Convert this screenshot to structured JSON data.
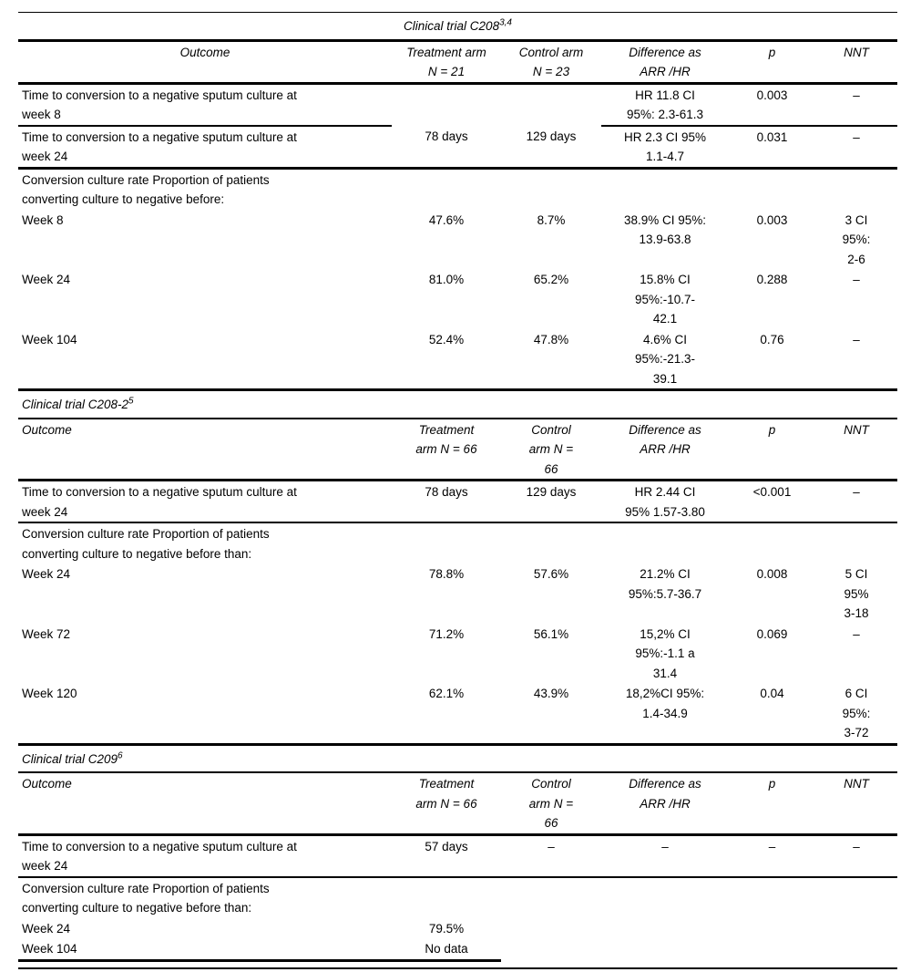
{
  "table": {
    "sections": [
      {
        "title": {
          "text": "Clinical trial C208",
          "sup": "3,4"
        },
        "header": {
          "outcome": "Outcome",
          "treatment": [
            "Treatment arm",
            "N = 21"
          ],
          "control": [
            "Control arm",
            "N = 23"
          ],
          "difference": [
            "Difference as",
            "ARR /HR"
          ],
          "p": "p",
          "nnt": "NNT"
        },
        "rows": [
          {
            "outcome": [
              "Time to conversion to a negative sputum culture at",
              "week 8"
            ],
            "treatment": [],
            "control": [],
            "difference": [
              "HR 11.8 CI",
              "95%: 2.3-61.3"
            ],
            "p": [
              "0.003"
            ],
            "nnt": [
              "–"
            ]
          },
          {
            "outcome": [
              "Time to conversion to a negative sputum culture at",
              "week 24"
            ],
            "treatment": [
              "78 days"
            ],
            "control": [
              "129 days"
            ],
            "difference": [
              "HR 2.3 CI 95%",
              "1.1-4.7"
            ],
            "p": [
              "0.031"
            ],
            "nnt": [
              "–"
            ]
          }
        ],
        "group": {
          "label": [
            "Conversion culture rate Proportion of patients",
            "converting culture to negative before:"
          ],
          "rows": [
            {
              "outcome": [
                "Week 8"
              ],
              "treatment": [
                "47.6%"
              ],
              "control": [
                "8.7%"
              ],
              "difference": [
                "38.9% CI 95%:",
                "13.9-63.8"
              ],
              "p": [
                "0.003"
              ],
              "nnt": [
                "3 CI",
                "95%:",
                "2-6"
              ]
            },
            {
              "outcome": [
                "Week 24"
              ],
              "treatment": [
                "81.0%"
              ],
              "control": [
                "65.2%"
              ],
              "difference": [
                "15.8% CI",
                "95%:-10.7-",
                "42.1"
              ],
              "p": [
                "0.288"
              ],
              "nnt": [
                "–"
              ]
            },
            {
              "outcome": [
                "Week 104"
              ],
              "treatment": [
                "52.4%"
              ],
              "control": [
                "47.8%"
              ],
              "difference": [
                "4.6% CI",
                "95%:-21.3-",
                "39.1"
              ],
              "p": [
                "0.76"
              ],
              "nnt": [
                "–"
              ]
            }
          ]
        }
      },
      {
        "title": {
          "text": "Clinical trial C208-2",
          "sup": "5"
        },
        "header": {
          "outcome": "Outcome",
          "treatment": [
            "Treatment",
            "arm N = 66"
          ],
          "control": [
            "Control",
            "arm N =",
            "66"
          ],
          "difference": [
            "Difference as",
            "ARR /HR"
          ],
          "p": "p",
          "nnt": "NNT"
        },
        "rows": [
          {
            "outcome": [
              "Time to conversion to a negative sputum culture at",
              "week 24"
            ],
            "treatment": [
              "78 days"
            ],
            "control": [
              "129 days"
            ],
            "difference": [
              "HR 2.44 CI",
              "95% 1.57-3.80"
            ],
            "p": [
              "<0.001"
            ],
            "nnt": [
              "–"
            ]
          }
        ],
        "group": {
          "label": [
            "Conversion culture rate Proportion of patients",
            "converting culture to negative before than:"
          ],
          "rows": [
            {
              "outcome": [
                "Week 24"
              ],
              "treatment": [
                "78.8%"
              ],
              "control": [
                "57.6%"
              ],
              "difference": [
                "21.2% CI",
                "95%:5.7-36.7"
              ],
              "p": [
                "0.008"
              ],
              "nnt": [
                "5 CI",
                "95%",
                "3-18"
              ]
            },
            {
              "outcome": [
                "Week 72"
              ],
              "treatment": [
                "71.2%"
              ],
              "control": [
                "56.1%"
              ],
              "difference": [
                "15,2% CI",
                "95%:-1.1 a",
                "31.4"
              ],
              "p": [
                "0.069"
              ],
              "nnt": [
                "–"
              ]
            },
            {
              "outcome": [
                "Week 120"
              ],
              "treatment": [
                "62.1%"
              ],
              "control": [
                "43.9%"
              ],
              "difference": [
                "18,2%CI 95%:",
                "1.4-34.9"
              ],
              "p": [
                "0.04"
              ],
              "nnt": [
                "6 CI",
                "95%:",
                "3-72"
              ]
            }
          ]
        }
      },
      {
        "title": {
          "text": "Clinical trial C209",
          "sup": "6"
        },
        "header": {
          "outcome": "Outcome",
          "treatment": [
            "Treatment",
            "arm N = 66"
          ],
          "control": [
            "Control",
            "arm N =",
            "66"
          ],
          "difference": [
            "Difference as",
            "ARR /HR"
          ],
          "p": "p",
          "nnt": "NNT"
        },
        "rows": [
          {
            "outcome": [
              "Time to conversion to a negative sputum culture at",
              "week 24"
            ],
            "treatment": [
              "57 days"
            ],
            "control": [
              "–"
            ],
            "difference": [
              "–"
            ],
            "p": [
              "–"
            ],
            "nnt": [
              "–"
            ]
          }
        ],
        "group": {
          "label": [
            "Conversion culture rate Proportion of patients",
            "converting culture to negative before than:"
          ],
          "rows": [
            {
              "outcome": [
                "Week 24"
              ],
              "treatment": [
                "79.5%"
              ],
              "control": [],
              "difference": [],
              "p": [],
              "nnt": []
            },
            {
              "outcome": [
                "Week 104"
              ],
              "treatment": [
                "No data"
              ],
              "control": [],
              "difference": [],
              "p": [],
              "nnt": []
            }
          ]
        }
      }
    ]
  }
}
